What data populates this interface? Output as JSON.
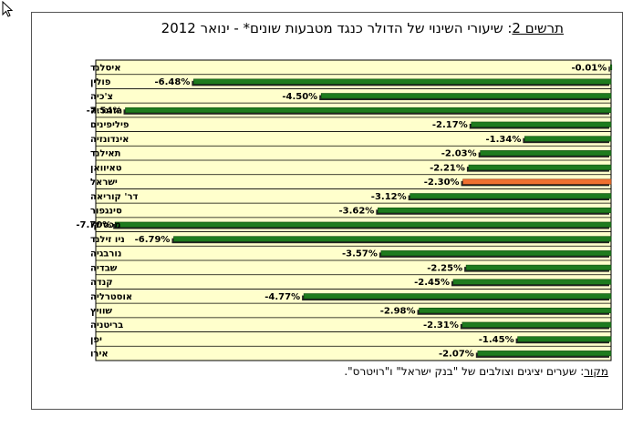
{
  "title": {
    "label": "תרשים 2",
    "text": ": שיעורי השינוי של הדולר כנגד מטבעות שונים* - ינואר 2012"
  },
  "source": {
    "label": "מקור",
    "text": ": שערים יציגים וצולבים של \"בנק ישראל\" ו\"רויטרס\"."
  },
  "colors": {
    "plot_background": "#ffffcc",
    "bar": "#1e7b1e",
    "bar_highlight": "#f07030",
    "bar_shadow": "#222222",
    "gridline": "#000000"
  },
  "chart_data": {
    "type": "bar",
    "orientation": "horizontal",
    "categories": [
      "איסלנד",
      "פולין",
      "צ'כיה",
      "הונגריה",
      "פיליפינים",
      "אינדונזיה",
      "תאילנד",
      "טאיוואן",
      "ישראל",
      "דר' קוריאה",
      "סינגפור",
      "מכסיקו",
      "ניו זילנד",
      "נורבגיה",
      "שבדיה",
      "קנדה",
      "אוסטרליה",
      "שוויץ",
      "בריטניה",
      "יפן",
      "אירו"
    ],
    "values": [
      -0.01,
      -6.48,
      -4.5,
      -7.54,
      -2.17,
      -1.34,
      -2.03,
      -2.21,
      -2.3,
      -3.12,
      -3.62,
      -7.7,
      -6.79,
      -3.57,
      -2.25,
      -2.45,
      -4.77,
      -2.98,
      -2.31,
      -1.45,
      -2.07
    ],
    "data_labels": [
      "-0.01%",
      "-6.48%",
      "-4.50%",
      "-7.54%",
      "-2.17%",
      "-1.34%",
      "-2.03%",
      "-2.21%",
      "-2.30%",
      "-3.12%",
      "-3.62%",
      "-7.70%",
      "-6.79%",
      "-3.57%",
      "-2.25%",
      "-2.45%",
      "-4.77%",
      "-2.98%",
      "-2.31%",
      "-1.45%",
      "-2.07%"
    ],
    "highlight_category": "ישראל",
    "xlim": [
      -8.0,
      0
    ]
  }
}
